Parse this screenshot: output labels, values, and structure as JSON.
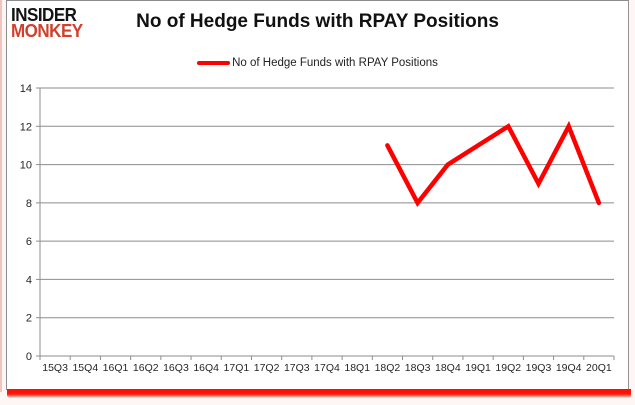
{
  "logo": {
    "line1": "INSIDER",
    "line2": "MONKEY"
  },
  "header": {
    "title": "No of Hedge Funds with RPAY Positions"
  },
  "legend": {
    "label": "No of Hedge Funds with RPAY Positions"
  },
  "chart_data": {
    "type": "line",
    "title": "No of Hedge Funds with RPAY Positions",
    "categories": [
      "15Q3",
      "15Q4",
      "16Q1",
      "16Q2",
      "16Q3",
      "16Q4",
      "17Q1",
      "17Q2",
      "17Q3",
      "17Q4",
      "18Q1",
      "18Q2",
      "18Q3",
      "18Q4",
      "19Q1",
      "19Q2",
      "19Q3",
      "19Q4",
      "20Q1"
    ],
    "series": [
      {
        "name": "No of Hedge Funds with RPAY Positions",
        "color": "#ff0000",
        "values": [
          null,
          null,
          null,
          null,
          null,
          null,
          null,
          null,
          null,
          null,
          null,
          11,
          8,
          10,
          11,
          12,
          9,
          12,
          8
        ]
      }
    ],
    "xlabel": "",
    "ylabel": "",
    "ylim": [
      0,
      14
    ],
    "ytick_step": 2,
    "grid": true,
    "legend_position": "top"
  },
  "colors": {
    "line": "#ff0000",
    "grid": "#8c8c8c",
    "axis_text": "#262626",
    "logo_accent": "#d0402c",
    "bottom_bar": "#ff1505"
  }
}
